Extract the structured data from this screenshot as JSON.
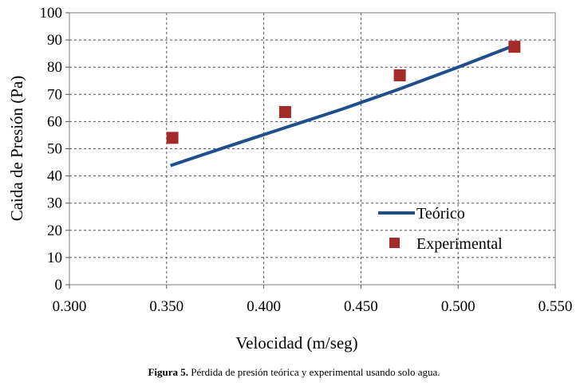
{
  "chart_data": {
    "type": "line+scatter",
    "title": "",
    "xlabel": "Velocidad (m/seg)",
    "ylabel": "Caida de Presión (Pa)",
    "xlim": [
      0.3,
      0.55
    ],
    "ylim": [
      0,
      100
    ],
    "xticks": [
      "0.300",
      "0.350",
      "0.400",
      "0.450",
      "0.500",
      "0.550"
    ],
    "yticks": [
      "0",
      "10",
      "20",
      "30",
      "40",
      "50",
      "60",
      "70",
      "80",
      "90",
      "100"
    ],
    "grid": true,
    "legend_position": "bottom-right",
    "series": [
      {
        "name": "Teórico",
        "kind": "line",
        "color": "#1f4e8c",
        "x": [
          0.352,
          0.38,
          0.41,
          0.44,
          0.47,
          0.5,
          0.529
        ],
        "y": [
          43.8,
          50.5,
          57.5,
          64.5,
          72.0,
          80.0,
          88.0
        ]
      },
      {
        "name": "Experimental",
        "kind": "scatter",
        "color": "#a52a2a",
        "x": [
          0.353,
          0.411,
          0.47,
          0.529
        ],
        "y": [
          54,
          63.5,
          77,
          87.5
        ]
      }
    ]
  },
  "caption": {
    "label": "Figura 5.",
    "text": " Pérdida de presión teórica y experimental usando solo agua."
  }
}
